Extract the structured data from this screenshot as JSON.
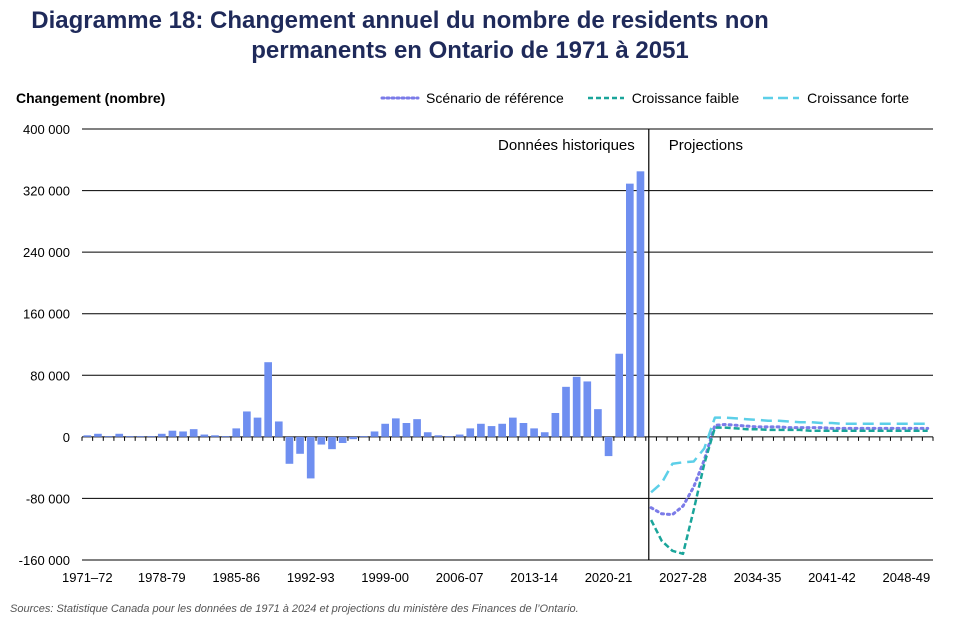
{
  "title_line1": "Diagramme 18: Changement annuel du nombre de residents non",
  "title_line2": "permanents en Ontario de 1971 à 2051",
  "source": "Sources: Statistique Canada pour les données de 1971 à 2024 et projections du ministère des Finances de l’Ontario.",
  "colors": {
    "bars": "#6f8ff0",
    "reference": "#7b7be8",
    "low": "#1aa59a",
    "high": "#5ccfe8",
    "title": "#1f2a5a"
  },
  "chart_data": {
    "type": "bar",
    "title": "Diagramme 18: Changement annuel du nombre de residents non permanents en Ontario de 1971 à 2051",
    "ylabel": "Changement (nombre)",
    "ylim": [
      -160000,
      400000
    ],
    "yticks": [
      -160000,
      -80000,
      0,
      80000,
      160000,
      240000,
      320000,
      400000
    ],
    "ytick_labels": [
      "-160 000",
      "-80 000",
      "0",
      "80 000",
      "160 000",
      "240 000",
      "320 000",
      "400 000"
    ],
    "xtick_labels": [
      "1971–72",
      "1978-79",
      "1985-86",
      "1992-93",
      "1999-00",
      "2006-07",
      "2013-14",
      "2020-21",
      "2027-28",
      "2034-35",
      "2041-42",
      "2048-49"
    ],
    "xtick_indices": [
      0,
      7,
      14,
      21,
      28,
      35,
      42,
      49,
      56,
      63,
      70,
      77
    ],
    "grid": true,
    "legend_position": "top-right",
    "annotations": [
      "Données historiques",
      "Projections"
    ],
    "historical": {
      "start_year": "1971–72",
      "values": [
        2000,
        4000,
        1000,
        4000,
        1000,
        1000,
        1000,
        4000,
        8000,
        7000,
        10000,
        3000,
        2000,
        1000,
        11000,
        33000,
        25000,
        97000,
        20000,
        -35000,
        -22000,
        -54000,
        -10000,
        -16000,
        -8000,
        -3000,
        1000,
        7000,
        17000,
        24000,
        18000,
        23000,
        6000,
        2000,
        1000,
        3000,
        11000,
        17000,
        14000,
        17000,
        25000,
        18000,
        11000,
        6000,
        31000,
        65000,
        78000,
        72000,
        36000,
        -25000,
        108000,
        329000,
        345000
      ]
    },
    "projection_start_index": 53,
    "series": [
      {
        "name": "Scénario de référence",
        "style": "dotted",
        "values": [
          -92000,
          -100000,
          -101000,
          -90000,
          -65000,
          -30000,
          15000,
          16000,
          15000,
          14000,
          13000,
          13000,
          13000,
          12000,
          12000,
          12000,
          12000,
          11000,
          11000,
          11000,
          11000,
          11000,
          11000,
          11000,
          11000,
          11000,
          11000
        ]
      },
      {
        "name": "Croissance faible",
        "style": "dashed",
        "values": [
          -108000,
          -135000,
          -148000,
          -152000,
          -95000,
          -35000,
          12000,
          12000,
          11000,
          10000,
          10000,
          9000,
          9000,
          9000,
          9000,
          8000,
          8000,
          8000,
          8000,
          8000,
          8000,
          8000,
          8000,
          8000,
          8000,
          8000,
          8000
        ]
      },
      {
        "name": "Croissance forte",
        "style": "longdash",
        "values": [
          -72000,
          -60000,
          -35000,
          -33000,
          -32000,
          -15000,
          25000,
          25000,
          24000,
          23000,
          22000,
          21000,
          21000,
          20000,
          19000,
          19000,
          18000,
          18000,
          17000,
          17000,
          17000,
          17000,
          17000,
          17000,
          17000,
          17000,
          17000
        ]
      }
    ]
  }
}
